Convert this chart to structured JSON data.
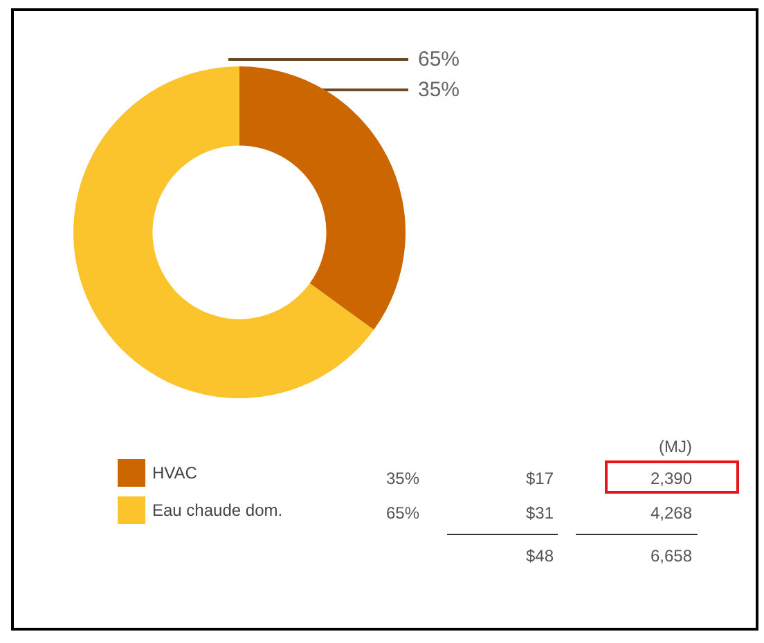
{
  "chart_data": {
    "type": "donut",
    "categories": [
      "HVAC",
      "Eau chaude dom."
    ],
    "values": [
      35,
      65
    ],
    "colors": [
      "#cc6600",
      "#fcc42c"
    ],
    "value_labels": [
      "35%",
      "65%"
    ],
    "legend": "bottom left",
    "annotations": [
      "(MJ)",
      "$17",
      "2,390",
      "$31",
      "4,268",
      "$48",
      "6,658"
    ]
  }
}
